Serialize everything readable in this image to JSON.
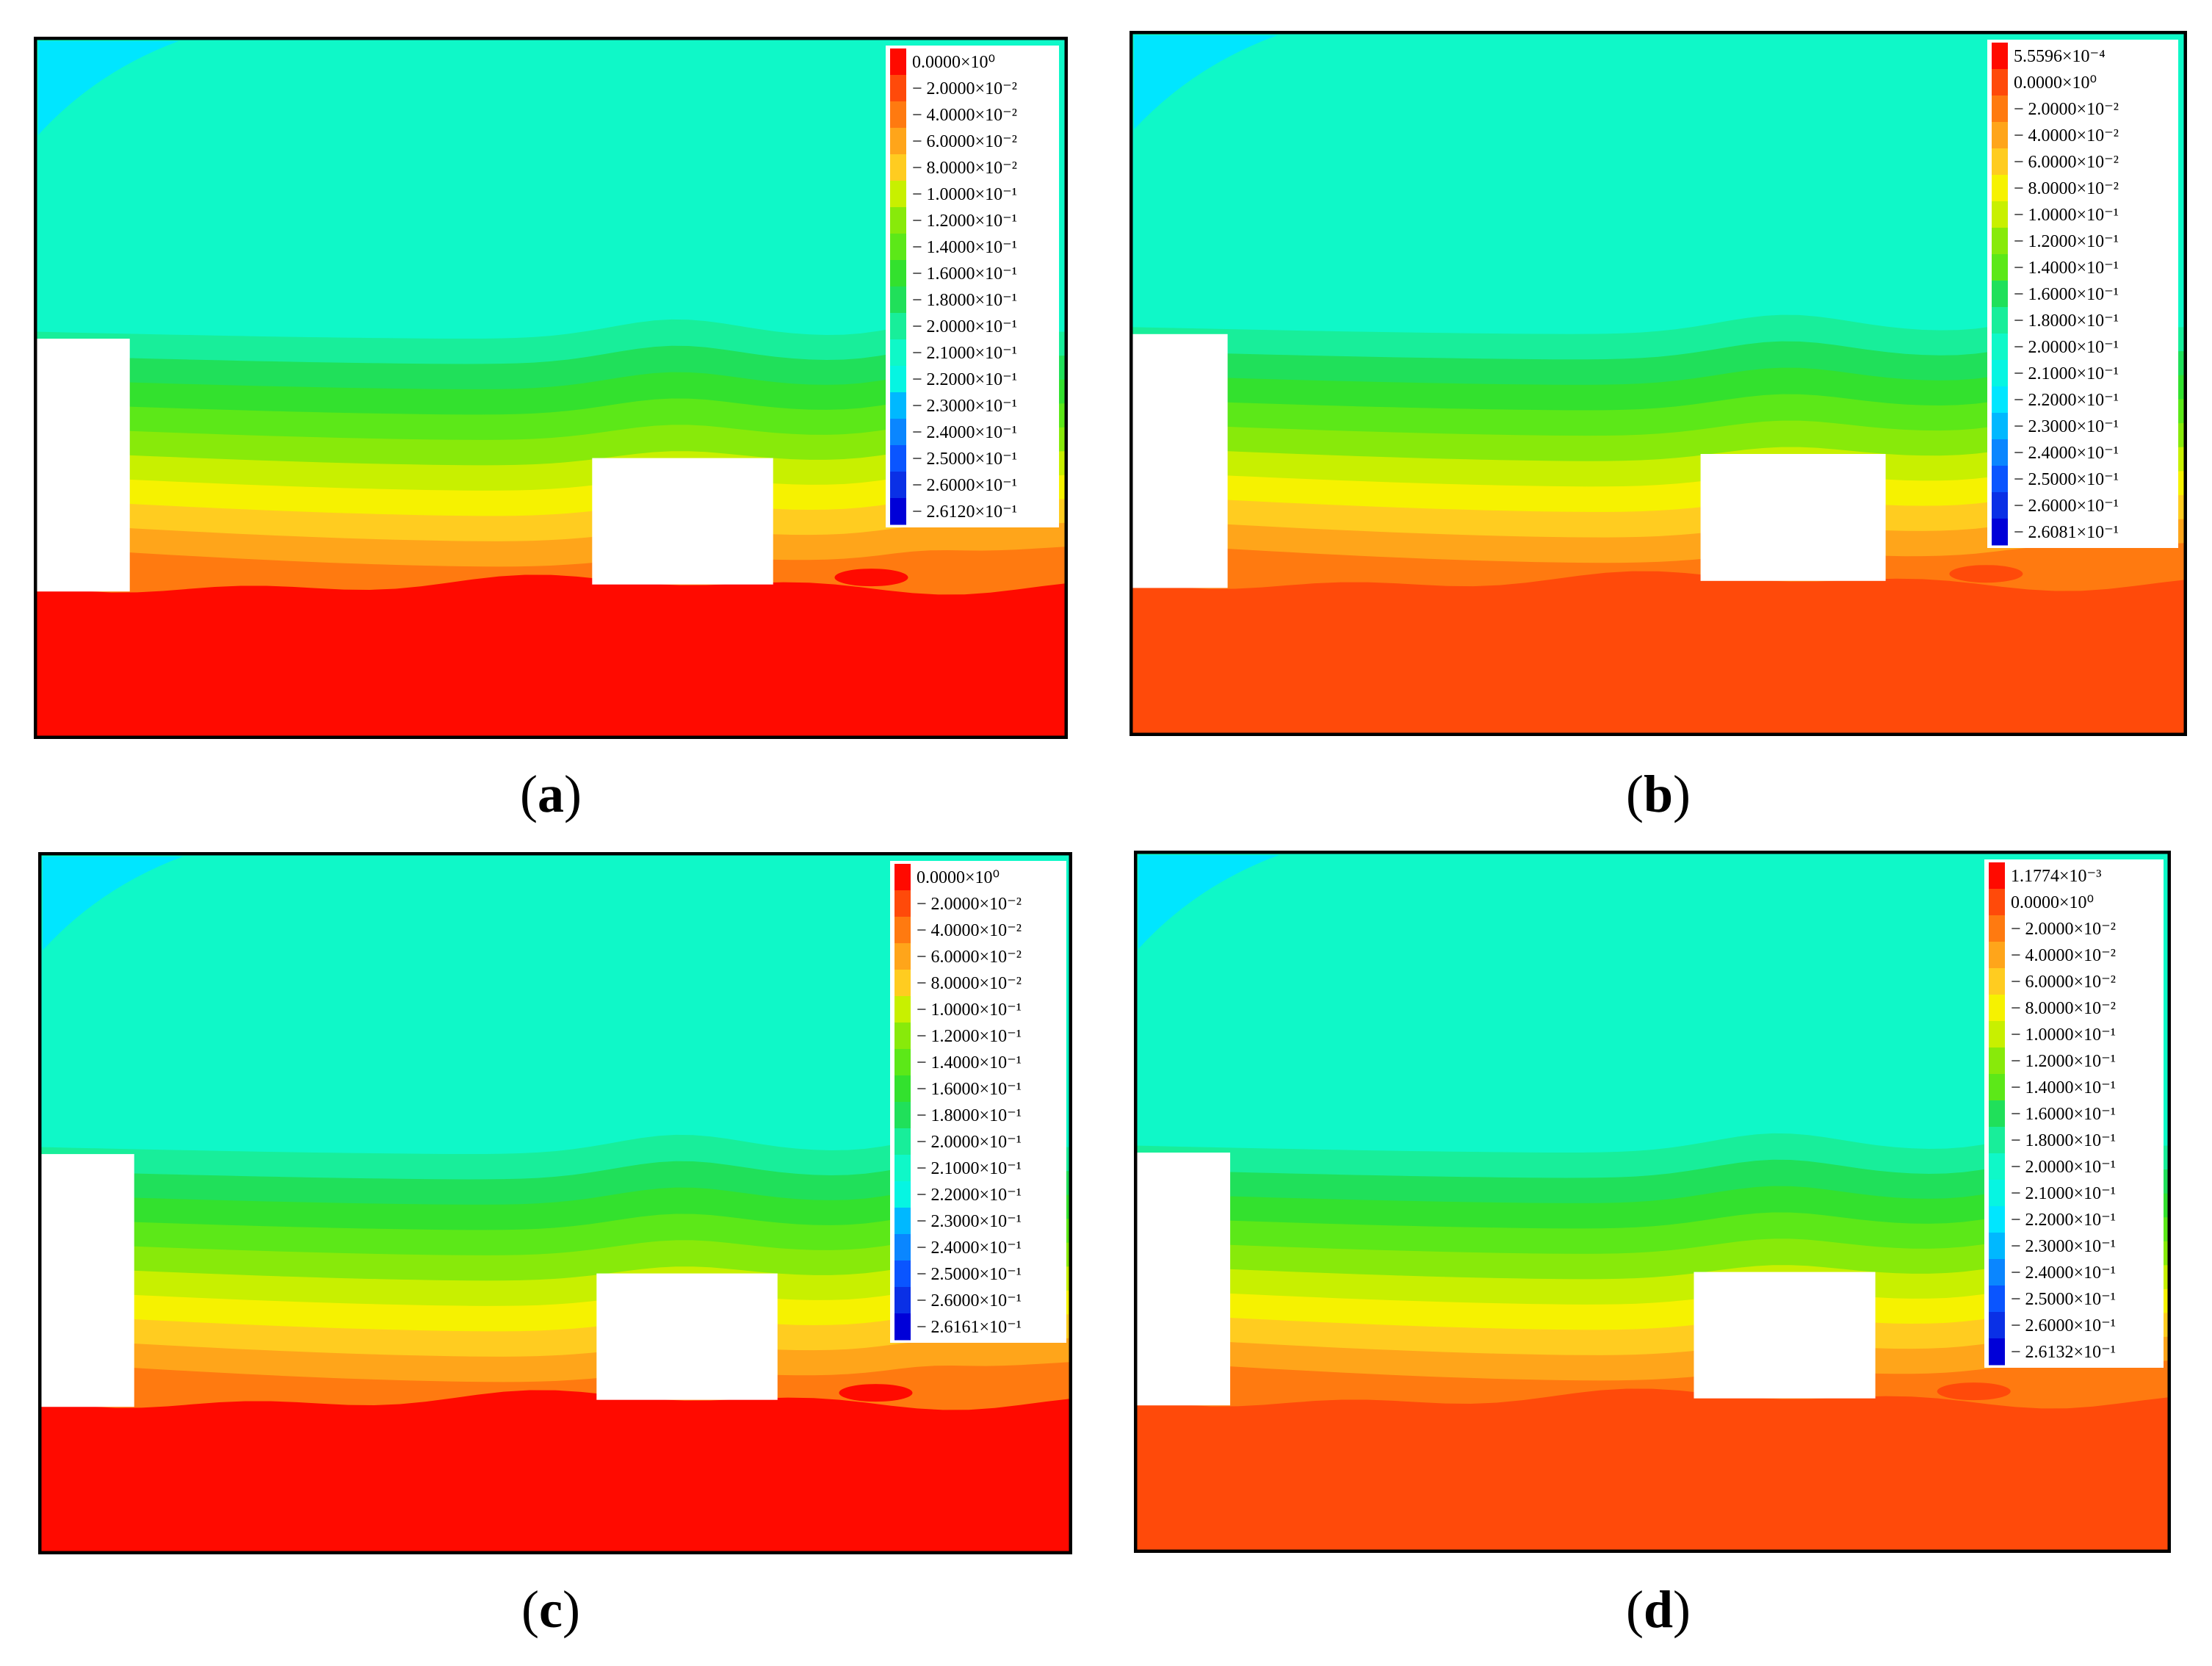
{
  "colors": {
    "red": "#ff0a00",
    "deep_orange": "#ff4a0a",
    "orange": "#ff7a10",
    "light_orange": "#ffa51a",
    "yellow_orange": "#ffcc20",
    "yellow": "#f6f200",
    "yellow_green": "#c8f000",
    "lime": "#88ea0a",
    "green1": "#5ce818",
    "green2": "#33e12e",
    "green3": "#20e05a",
    "teal_green": "#18ee9a",
    "aquamarine": "#0ff8c8",
    "turquoise": "#06f5e2",
    "cyan": "#00e6ff",
    "sky": "#00b8ff",
    "blue1": "#0a86ff",
    "blue2": "#0a55ff",
    "blue3": "#0a30e6",
    "deep_blue": "#0000d8",
    "obstacle": "#ffffff"
  },
  "panels": [
    {
      "id": "a",
      "caption_letter": "a",
      "legend": [
        "0.0000×10⁰",
        "− 2.0000×10⁻²",
        "− 4.0000×10⁻²",
        "− 6.0000×10⁻²",
        "− 8.0000×10⁻²",
        "− 1.0000×10⁻¹",
        "− 1.2000×10⁻¹",
        "− 1.4000×10⁻¹",
        "− 1.6000×10⁻¹",
        "− 1.8000×10⁻¹",
        "− 2.0000×10⁻¹",
        "− 2.1000×10⁻¹",
        "− 2.2000×10⁻¹",
        "− 2.3000×10⁻¹",
        "− 2.4000×10⁻¹",
        "− 2.5000×10⁻¹",
        "− 2.6000×10⁻¹",
        "− 2.6120×10⁻¹"
      ],
      "base_color": "red"
    },
    {
      "id": "b",
      "caption_letter": "b",
      "legend": [
        "5.5596×10⁻⁴",
        "0.0000×10⁰",
        "− 2.0000×10⁻²",
        "− 4.0000×10⁻²",
        "− 6.0000×10⁻²",
        "− 8.0000×10⁻²",
        "− 1.0000×10⁻¹",
        "− 1.2000×10⁻¹",
        "− 1.4000×10⁻¹",
        "− 1.6000×10⁻¹",
        "− 1.8000×10⁻¹",
        "− 2.0000×10⁻¹",
        "− 2.1000×10⁻¹",
        "− 2.2000×10⁻¹",
        "− 2.3000×10⁻¹",
        "− 2.4000×10⁻¹",
        "− 2.5000×10⁻¹",
        "− 2.6000×10⁻¹",
        "− 2.6081×10⁻¹"
      ],
      "base_color": "deep_orange"
    },
    {
      "id": "c",
      "caption_letter": "c",
      "legend": [
        "0.0000×10⁰",
        "− 2.0000×10⁻²",
        "− 4.0000×10⁻²",
        "− 6.0000×10⁻²",
        "− 8.0000×10⁻²",
        "− 1.0000×10⁻¹",
        "− 1.2000×10⁻¹",
        "− 1.4000×10⁻¹",
        "− 1.6000×10⁻¹",
        "− 1.8000×10⁻¹",
        "− 2.0000×10⁻¹",
        "− 2.1000×10⁻¹",
        "− 2.2000×10⁻¹",
        "− 2.3000×10⁻¹",
        "− 2.4000×10⁻¹",
        "− 2.5000×10⁻¹",
        "− 2.6000×10⁻¹",
        "− 2.6161×10⁻¹"
      ],
      "base_color": "red"
    },
    {
      "id": "d",
      "caption_letter": "d",
      "legend": [
        "1.1774×10⁻³",
        "0.0000×10⁰",
        "− 2.0000×10⁻²",
        "− 4.0000×10⁻²",
        "− 6.0000×10⁻²",
        "− 8.0000×10⁻²",
        "− 1.0000×10⁻¹",
        "− 1.2000×10⁻¹",
        "− 1.4000×10⁻¹",
        "− 1.6000×10⁻¹",
        "− 1.8000×10⁻¹",
        "− 2.0000×10⁻¹",
        "− 2.1000×10⁻¹",
        "− 2.2000×10⁻¹",
        "− 2.3000×10⁻¹",
        "− 2.4000×10⁻¹",
        "− 2.5000×10⁻¹",
        "− 2.6000×10⁻¹",
        "− 2.6132×10⁻¹"
      ],
      "base_color": "deep_orange"
    }
  ]
}
